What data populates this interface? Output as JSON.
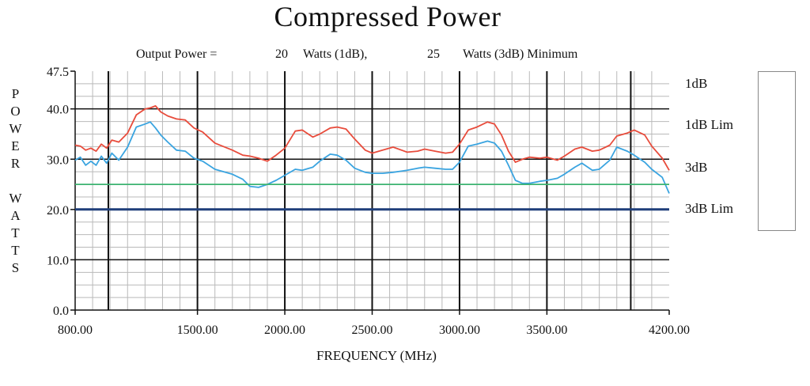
{
  "chart_data": {
    "type": "line",
    "title": "Compressed Power",
    "subtitle": {
      "prefix": "Output Power =",
      "value_1db": "20",
      "unit_1db": "Watts (1dB),",
      "value_3db": "25",
      "unit_3db": "Watts (3dB) Minimum"
    },
    "ylabel_line1": "POWER",
    "ylabel_line2": "WATTS",
    "xlabel": "FREQUENCY (MHz)",
    "xlim": [
      800,
      4200
    ],
    "ylim": [
      0,
      47.5
    ],
    "x_ticks": [
      "800.00",
      "1500.00",
      "2000.00",
      "2500.00",
      "3000.00",
      "3500.00",
      "4200.00"
    ],
    "x_tick_values": [
      800,
      1500,
      2000,
      2500,
      3000,
      3500,
      4200
    ],
    "y_ticks": [
      "0.0",
      "10.0",
      "20.0",
      "30.0",
      "40.0",
      "47.5"
    ],
    "y_tick_values": [
      0,
      10,
      20,
      30,
      40,
      47.5
    ],
    "grid": true,
    "legend_position": "right",
    "series": [
      {
        "name": "1dB",
        "color": "#3aa4e0",
        "x": [
          800,
          830,
          860,
          890,
          920,
          950,
          980,
          1010,
          1050,
          1100,
          1150,
          1200,
          1230,
          1260,
          1290,
          1330,
          1380,
          1430,
          1480,
          1530,
          1600,
          1700,
          1760,
          1800,
          1850,
          1900,
          1950,
          2000,
          2060,
          2100,
          2160,
          2200,
          2260,
          2300,
          2350,
          2400,
          2460,
          2500,
          2560,
          2620,
          2700,
          2760,
          2800,
          2860,
          2920,
          2960,
          3000,
          3050,
          3100,
          3160,
          3200,
          3240,
          3280,
          3320,
          3360,
          3400,
          3460,
          3500,
          3560,
          3600,
          3660,
          3700,
          3760,
          3800,
          3860,
          3900,
          3960,
          4000,
          4060,
          4100,
          4160,
          4200
        ],
        "y": [
          29.8,
          30.4,
          28.8,
          29.6,
          28.8,
          30.6,
          29.2,
          31.2,
          29.8,
          32.4,
          36.4,
          37.0,
          37.4,
          36.2,
          34.8,
          33.4,
          31.8,
          31.6,
          30.2,
          29.6,
          28.0,
          27.0,
          26.0,
          24.6,
          24.4,
          25.0,
          25.8,
          26.8,
          28.0,
          27.8,
          28.4,
          29.6,
          31.0,
          30.8,
          29.8,
          28.2,
          27.4,
          27.2,
          27.2,
          27.4,
          27.8,
          28.2,
          28.4,
          28.2,
          28.0,
          28.0,
          29.4,
          32.6,
          33.0,
          33.6,
          33.2,
          31.6,
          28.8,
          25.8,
          25.2,
          25.2,
          25.6,
          25.8,
          26.2,
          27.0,
          28.4,
          29.2,
          27.8,
          28.0,
          29.8,
          32.4,
          31.6,
          30.8,
          29.4,
          28.0,
          26.4,
          23.2
        ]
      },
      {
        "name": "1dB Lim",
        "color": "#1f3f7a",
        "x": [
          800,
          4200
        ],
        "y": [
          20,
          20
        ]
      },
      {
        "name": "3dB",
        "color": "#e84c3c",
        "x": [
          800,
          830,
          860,
          890,
          920,
          950,
          980,
          1010,
          1050,
          1100,
          1150,
          1200,
          1230,
          1260,
          1290,
          1330,
          1380,
          1430,
          1480,
          1530,
          1600,
          1700,
          1760,
          1800,
          1850,
          1900,
          1950,
          2000,
          2060,
          2100,
          2160,
          2200,
          2260,
          2300,
          2350,
          2400,
          2460,
          2500,
          2560,
          2620,
          2700,
          2760,
          2800,
          2860,
          2920,
          2960,
          3000,
          3050,
          3100,
          3160,
          3200,
          3240,
          3280,
          3320,
          3360,
          3400,
          3460,
          3500,
          3560,
          3600,
          3660,
          3700,
          3760,
          3800,
          3860,
          3900,
          3960,
          4000,
          4060,
          4100,
          4160,
          4200
        ],
        "y": [
          32.8,
          32.6,
          31.8,
          32.2,
          31.6,
          33.0,
          32.2,
          33.8,
          33.4,
          35.2,
          38.8,
          40.0,
          40.2,
          40.6,
          39.4,
          38.6,
          38.0,
          37.8,
          36.2,
          35.4,
          33.2,
          31.8,
          30.8,
          30.6,
          30.2,
          29.6,
          30.8,
          32.2,
          35.6,
          35.8,
          34.4,
          35.0,
          36.2,
          36.4,
          36.0,
          34.0,
          31.8,
          31.2,
          31.8,
          32.4,
          31.4,
          31.6,
          32.0,
          31.6,
          31.2,
          31.4,
          33.0,
          35.8,
          36.4,
          37.4,
          37.0,
          34.8,
          31.6,
          29.4,
          30.0,
          30.4,
          30.2,
          30.4,
          29.8,
          30.6,
          32.0,
          32.4,
          31.6,
          31.8,
          32.8,
          34.6,
          35.2,
          35.8,
          34.8,
          32.6,
          30.2,
          27.8
        ]
      },
      {
        "name": "3dB Lim",
        "color": "#3cb371",
        "x": [
          800,
          4200
        ],
        "y": [
          25,
          25
        ]
      }
    ]
  }
}
